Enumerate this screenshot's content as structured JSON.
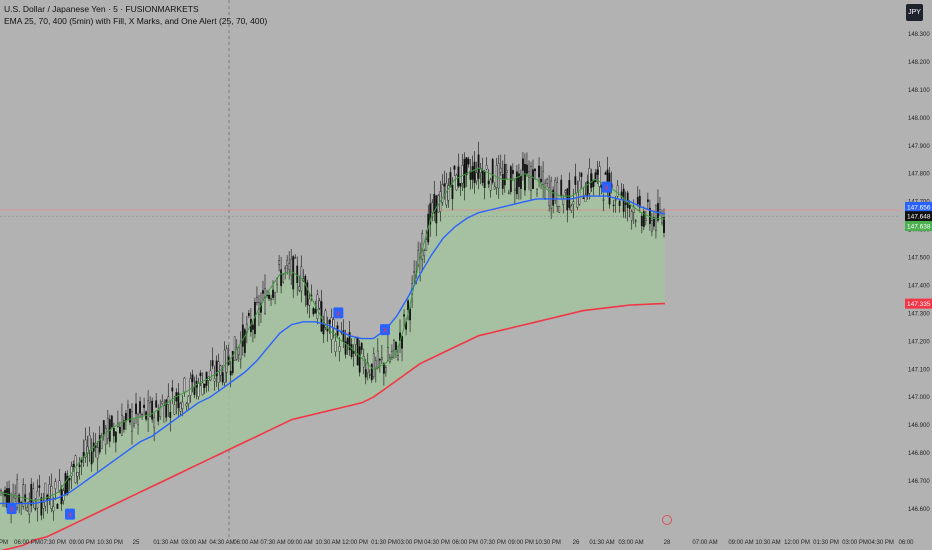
{
  "header": {
    "symbol_line": "U.S. Dollar / Japanese Yen · 5 · FUSIONMARKETS",
    "indicator_line": "EMA 25, 70, 400 (5min) with Fill, X Marks, and One Alert (25, 70, 400)",
    "currency_button": "JPY"
  },
  "colors": {
    "background": "#b2b2b2",
    "candle": "#111111",
    "ema_fast": "#3f9a3f",
    "ema_mid": "#2962ff",
    "ema_slow": "#f23645",
    "fill": "#a3c29f",
    "marker": "#2962ff"
  },
  "chart_data": {
    "type": "candlestick",
    "y_range": [
      146.55,
      148.38
    ],
    "y_ticks": [
      "148.300",
      "148.200",
      "148.100",
      "148.000",
      "147.900",
      "147.800",
      "147.700",
      "147.600",
      "147.500",
      "147.400",
      "147.300",
      "147.200",
      "147.100",
      "147.000",
      "146.900",
      "146.800",
      "146.700",
      "146.600"
    ],
    "x_labels": [
      "0 PM",
      "06:00 PM",
      "07:30 PM",
      "09:00 PM",
      "10:30 PM",
      "25",
      "01:30 AM",
      "03:00 AM",
      "04:30 AM",
      "06:00 AM",
      "07:30 AM",
      "09:00 AM",
      "10:30 AM",
      "12:00 PM",
      "01:30 PM",
      "03:00 PM",
      "04:30 PM",
      "06:00 PM",
      "07:30 PM",
      "09:00 PM",
      "10:30 PM",
      "26",
      "01:30 AM",
      "03:00 AM",
      "28",
      "07:00 AM",
      "09:00 AM",
      "10:30 AM",
      "12:00 PM",
      "01:30 PM",
      "03:00 PM",
      "04:30 PM",
      "06:00"
    ],
    "x_label_positions_px": null,
    "price_tags": [
      {
        "label": "147.656",
        "value": 147.656,
        "color": "#2962ff"
      },
      {
        "label": "147.648",
        "value": 147.648,
        "color": "#111111"
      },
      {
        "label": "147.638",
        "value": 147.638,
        "color": "#4caf50"
      },
      {
        "label": "147.335",
        "value": 147.335,
        "color": "#f23645"
      }
    ],
    "horizontal_lines": [
      {
        "value": 147.67,
        "color": "#f08080"
      },
      {
        "value": 147.648,
        "color": "#888888"
      }
    ],
    "ema_fast": [
      146.66,
      146.65,
      146.64,
      146.63,
      146.64,
      146.66,
      146.72,
      146.78,
      146.82,
      146.87,
      146.9,
      146.92,
      146.93,
      146.94,
      146.97,
      147.0,
      147.02,
      147.05,
      147.07,
      147.1,
      147.15,
      147.22,
      147.3,
      147.38,
      147.44,
      147.45,
      147.42,
      147.33,
      147.25,
      147.21,
      147.18,
      147.14,
      147.1,
      147.12,
      147.16,
      147.3,
      147.5,
      147.65,
      147.72,
      147.78,
      147.8,
      147.82,
      147.8,
      147.78,
      147.78,
      147.8,
      147.78,
      147.74,
      147.72,
      147.72,
      147.75,
      147.78,
      147.76,
      147.73,
      147.69,
      147.66,
      147.64,
      147.638
    ],
    "ema_mid": [
      146.62,
      146.62,
      146.62,
      146.62,
      146.63,
      146.64,
      146.66,
      146.69,
      146.72,
      146.75,
      146.78,
      146.81,
      146.84,
      146.86,
      146.89,
      146.92,
      146.95,
      146.98,
      147.0,
      147.03,
      147.06,
      147.09,
      147.13,
      147.18,
      147.23,
      147.26,
      147.27,
      147.27,
      147.26,
      147.24,
      147.22,
      147.21,
      147.21,
      147.24,
      147.29,
      147.36,
      147.44,
      147.51,
      147.57,
      147.61,
      147.64,
      147.66,
      147.67,
      147.68,
      147.69,
      147.7,
      147.71,
      147.71,
      147.71,
      147.71,
      147.72,
      147.72,
      147.72,
      147.71,
      147.7,
      147.68,
      147.665,
      147.656
    ],
    "ema_slow": [
      146.45,
      146.46,
      146.47,
      146.49,
      146.5,
      146.52,
      146.54,
      146.56,
      146.58,
      146.6,
      146.62,
      146.64,
      146.66,
      146.68,
      146.7,
      146.72,
      146.74,
      146.76,
      146.78,
      146.8,
      146.82,
      146.84,
      146.86,
      146.88,
      146.9,
      146.92,
      146.93,
      146.94,
      146.95,
      146.96,
      146.97,
      146.98,
      147.0,
      147.03,
      147.06,
      147.09,
      147.12,
      147.14,
      147.16,
      147.18,
      147.2,
      147.22,
      147.23,
      147.24,
      147.25,
      147.26,
      147.27,
      147.28,
      147.29,
      147.3,
      147.31,
      147.315,
      147.32,
      147.325,
      147.33,
      147.332,
      147.334,
      147.335
    ],
    "markers": [
      {
        "index": 1,
        "label": "x",
        "value": 146.6
      },
      {
        "index": 6,
        "label": "x",
        "value": 146.58
      },
      {
        "index": 29,
        "label": "x",
        "value": 147.3
      },
      {
        "index": 33,
        "label": "x",
        "value": 147.24
      },
      {
        "index": 52,
        "label": "x",
        "value": 147.75
      }
    ]
  }
}
